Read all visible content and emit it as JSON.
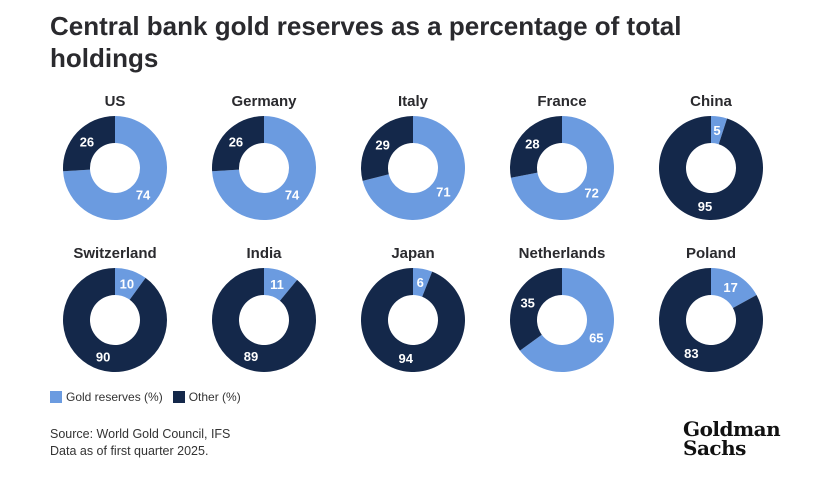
{
  "title": "Central bank gold reserves as a percentage of total holdings",
  "colors": {
    "gold": "#6b9be0",
    "other": "#14284a"
  },
  "legend": {
    "gold": "Gold reserves (%)",
    "other": "Other (%)"
  },
  "source": {
    "line1": "Source: World Gold Council, IFS",
    "line2": "Data as of first quarter 2025."
  },
  "logo": {
    "line1": "Goldman",
    "line2": "Sachs"
  },
  "chart_data": {
    "type": "pie",
    "series_names": [
      "Gold reserves (%)",
      "Other (%)"
    ],
    "items": [
      {
        "country": "US",
        "gold": 74,
        "other": 26
      },
      {
        "country": "Germany",
        "gold": 74,
        "other": 26
      },
      {
        "country": "Italy",
        "gold": 71,
        "other": 29
      },
      {
        "country": "France",
        "gold": 72,
        "other": 28
      },
      {
        "country": "China",
        "gold": 5,
        "other": 95
      },
      {
        "country": "Switzerland",
        "gold": 10,
        "other": 90
      },
      {
        "country": "India",
        "gold": 11,
        "other": 89
      },
      {
        "country": "Japan",
        "gold": 6,
        "other": 94
      },
      {
        "country": "Netherlands",
        "gold": 65,
        "other": 35
      },
      {
        "country": "Poland",
        "gold": 17,
        "other": 83
      }
    ]
  }
}
